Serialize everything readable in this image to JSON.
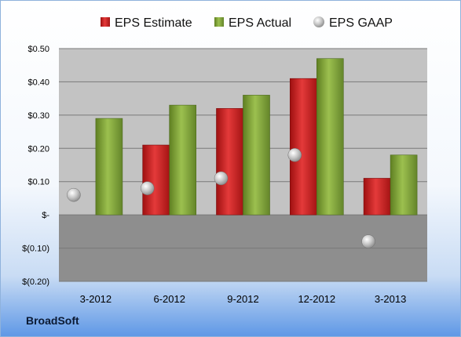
{
  "company_label": "BroadSoft",
  "colors": {
    "eps_estimate": "#cc1f1f",
    "eps_actual": "#7fa334",
    "eps_gaap": "#b8b8b8",
    "plot_upper": "#c3c3c3",
    "plot_lower": "#8e8e8e"
  },
  "chart_data": {
    "type": "bar",
    "categories": [
      "3-2012",
      "6-2012",
      "9-2012",
      "12-2012",
      "3-2013"
    ],
    "series": [
      {
        "name": "EPS Estimate",
        "kind": "bar",
        "color": "#cc1f1f",
        "values": [
          null,
          0.21,
          0.32,
          0.41,
          0.11
        ]
      },
      {
        "name": "EPS Actual",
        "kind": "bar",
        "color": "#7fa334",
        "values": [
          0.29,
          0.33,
          0.36,
          0.47,
          0.18
        ]
      },
      {
        "name": "EPS GAAP",
        "kind": "marker",
        "color": "#b8b8b8",
        "values": [
          0.06,
          0.08,
          0.11,
          0.18,
          -0.08
        ]
      }
    ],
    "ylim": [
      -0.2,
      0.5
    ],
    "yticks": [
      0.5,
      0.4,
      0.3,
      0.2,
      0.1,
      0,
      -0.1,
      -0.2
    ],
    "ytick_labels": [
      "$0.50",
      "$0.40",
      "$0.30",
      "$0.20",
      "$0.10",
      "$-",
      "$(0.10)",
      "$(0.20)"
    ],
    "grid": true,
    "legend_position": "top"
  }
}
